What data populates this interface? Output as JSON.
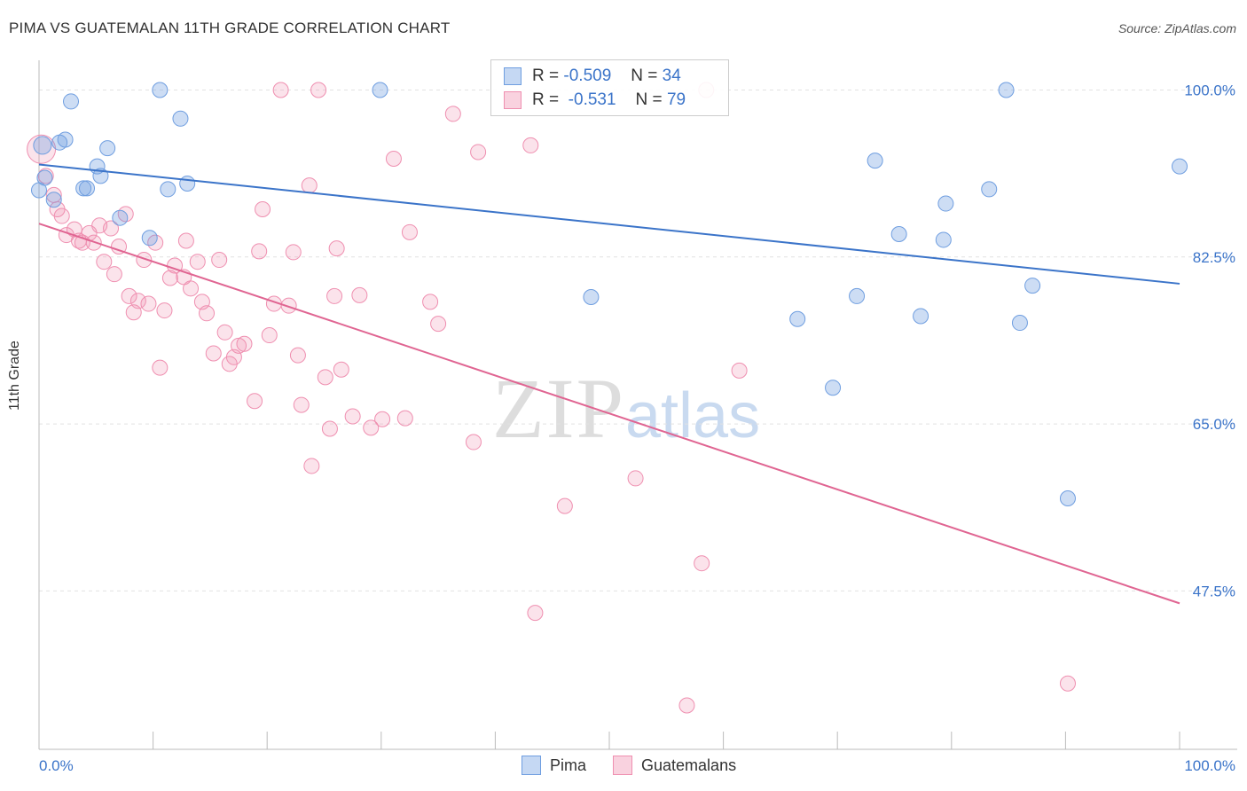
{
  "header": {
    "title": "PIMA VS GUATEMALAN 11TH GRADE CORRELATION CHART",
    "source": "Source: ZipAtlas.com"
  },
  "watermark": {
    "zip": "ZIP",
    "atlas": "atlas"
  },
  "legend": {
    "rows": [
      {
        "r_label": "R =",
        "r_value": "-0.509",
        "n_label": "N =",
        "n_value": "34",
        "color": "#6f9ee0"
      },
      {
        "r_label": "R =",
        "r_value": " -0.531",
        "n_label": "N =",
        "n_value": "79",
        "color": "#ef8fb0"
      }
    ]
  },
  "bottom_legend": {
    "pima": "Pima",
    "guatemalans": "Guatemalans"
  },
  "chart_data": {
    "type": "scatter",
    "title": "PIMA VS GUATEMALAN 11TH GRADE CORRELATION CHART",
    "xlabel": "",
    "ylabel": "11th Grade",
    "xlim": [
      0,
      100
    ],
    "ylim": [
      30.9,
      102.0
    ],
    "x_tick_labels": [
      "0.0%",
      "100.0%"
    ],
    "y_tick_values": [
      100.0,
      82.5,
      65.0,
      47.5
    ],
    "y_tick_labels": [
      "100.0%",
      "82.5%",
      "65.0%",
      "47.5%"
    ],
    "grid": "horizontal dashed",
    "series": [
      {
        "name": "Pima",
        "color": "#6f9ee0",
        "line_color": "#3b74c9",
        "trend": {
          "x": [
            0,
            100
          ],
          "y": [
            92.2,
            79.7
          ]
        },
        "points": [
          [
            0,
            89.5
          ],
          [
            0.5,
            90.8
          ],
          [
            1.3,
            88.5
          ],
          [
            1.8,
            94.5
          ],
          [
            2.3,
            94.8
          ],
          [
            2.8,
            98.8
          ],
          [
            3.9,
            89.7
          ],
          [
            4.2,
            89.7
          ],
          [
            5.1,
            92.0
          ],
          [
            5.4,
            91.0
          ],
          [
            6.0,
            93.9
          ],
          [
            7.1,
            86.6
          ],
          [
            9.7,
            84.5
          ],
          [
            10.6,
            100.0
          ],
          [
            11.3,
            89.6
          ],
          [
            12.4,
            97.0
          ],
          [
            13.0,
            90.2
          ],
          [
            29.9,
            100.0
          ],
          [
            48.4,
            78.3
          ],
          [
            66.5,
            76.0
          ],
          [
            69.6,
            68.8
          ],
          [
            71.7,
            78.4
          ],
          [
            73.3,
            92.6
          ],
          [
            75.4,
            84.9
          ],
          [
            77.3,
            76.3
          ],
          [
            79.3,
            84.3
          ],
          [
            79.5,
            88.1
          ],
          [
            83.3,
            89.6
          ],
          [
            84.8,
            100.0
          ],
          [
            86.0,
            75.6
          ],
          [
            87.1,
            79.5
          ],
          [
            90.2,
            57.2
          ],
          [
            100,
            92.0
          ],
          [
            0.3,
            94.2
          ]
        ]
      },
      {
        "name": "Guatemalans",
        "color": "#ef8fb0",
        "line_color": "#e06592",
        "trend": {
          "x": [
            0,
            100
          ],
          "y": [
            86.0,
            46.2
          ]
        },
        "points": [
          [
            0.2,
            93.8
          ],
          [
            0.6,
            91.0
          ],
          [
            1.3,
            89.0
          ],
          [
            1.6,
            87.5
          ],
          [
            2.0,
            86.8
          ],
          [
            2.4,
            84.8
          ],
          [
            3.1,
            85.4
          ],
          [
            3.5,
            84.2
          ],
          [
            3.8,
            84.0
          ],
          [
            4.4,
            85.0
          ],
          [
            4.8,
            84.0
          ],
          [
            5.3,
            85.8
          ],
          [
            5.7,
            82.0
          ],
          [
            6.3,
            85.5
          ],
          [
            6.6,
            80.7
          ],
          [
            7.0,
            83.6
          ],
          [
            7.6,
            87.0
          ],
          [
            7.9,
            78.4
          ],
          [
            8.3,
            76.7
          ],
          [
            8.7,
            77.9
          ],
          [
            9.2,
            82.2
          ],
          [
            9.6,
            77.6
          ],
          [
            10.2,
            84.0
          ],
          [
            10.6,
            70.9
          ],
          [
            11.0,
            76.9
          ],
          [
            11.5,
            80.3
          ],
          [
            11.9,
            81.6
          ],
          [
            12.7,
            80.4
          ],
          [
            12.9,
            84.2
          ],
          [
            13.3,
            79.2
          ],
          [
            13.9,
            82.0
          ],
          [
            14.3,
            77.8
          ],
          [
            14.7,
            76.6
          ],
          [
            15.3,
            72.4
          ],
          [
            15.8,
            82.2
          ],
          [
            16.3,
            74.6
          ],
          [
            16.7,
            71.3
          ],
          [
            17.1,
            72.0
          ],
          [
            17.5,
            73.2
          ],
          [
            18.0,
            73.4
          ],
          [
            18.9,
            67.4
          ],
          [
            19.3,
            83.1
          ],
          [
            19.6,
            87.5
          ],
          [
            20.2,
            74.3
          ],
          [
            20.6,
            77.6
          ],
          [
            21.2,
            100.0
          ],
          [
            21.9,
            77.4
          ],
          [
            22.3,
            83.0
          ],
          [
            22.7,
            72.2
          ],
          [
            23.0,
            67.0
          ],
          [
            23.7,
            90.0
          ],
          [
            23.9,
            60.6
          ],
          [
            24.5,
            100.0
          ],
          [
            25.1,
            69.9
          ],
          [
            25.5,
            64.5
          ],
          [
            25.9,
            78.4
          ],
          [
            26.1,
            83.4
          ],
          [
            26.5,
            70.7
          ],
          [
            27.5,
            65.8
          ],
          [
            28.1,
            78.5
          ],
          [
            29.1,
            64.6
          ],
          [
            30.1,
            65.5
          ],
          [
            31.1,
            92.8
          ],
          [
            32.1,
            65.6
          ],
          [
            32.5,
            85.1
          ],
          [
            34.3,
            77.8
          ],
          [
            35.0,
            75.5
          ],
          [
            36.3,
            97.5
          ],
          [
            38.1,
            63.1
          ],
          [
            38.5,
            93.5
          ],
          [
            43.1,
            94.2
          ],
          [
            43.5,
            45.2
          ],
          [
            46.1,
            56.4
          ],
          [
            52.3,
            59.3
          ],
          [
            56.8,
            35.5
          ],
          [
            58.1,
            50.4
          ],
          [
            58.5,
            100.0
          ],
          [
            61.4,
            70.6
          ],
          [
            90.2,
            37.8
          ]
        ]
      }
    ]
  }
}
